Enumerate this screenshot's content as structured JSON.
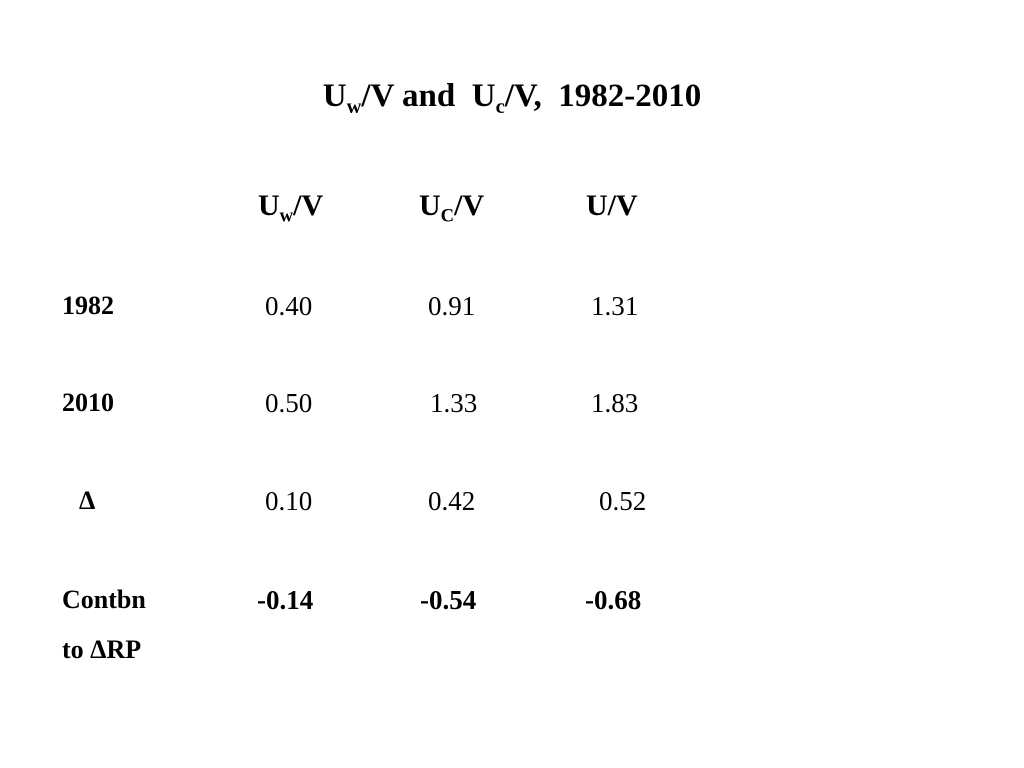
{
  "title": {
    "part1_main": "U",
    "part1_sub": "w",
    "part1_rest": "/V and",
    "part2_main": "U",
    "part2_sub": "c",
    "part2_rest": "/V,",
    "years": "1982-2010"
  },
  "table": {
    "headers": [
      {
        "main": "U",
        "sub": "w",
        "rest": "/V"
      },
      {
        "main": "U",
        "sub": "C",
        "rest": "/V"
      },
      {
        "main": "U/V",
        "sub": "",
        "rest": ""
      }
    ],
    "rows": [
      {
        "label": "1982",
        "values": [
          "0.40",
          "0.91",
          "1.31"
        ]
      },
      {
        "label": "2010",
        "values": [
          "0.50",
          "1.33",
          "1.83"
        ]
      },
      {
        "label": "Δ",
        "values": [
          "0.10",
          "0.42",
          "0.52"
        ]
      },
      {
        "label_line1": "Contbn",
        "label_line2": "to ΔRP",
        "values": [
          "-0.14",
          "-0.54",
          "-0.68"
        ]
      }
    ]
  }
}
